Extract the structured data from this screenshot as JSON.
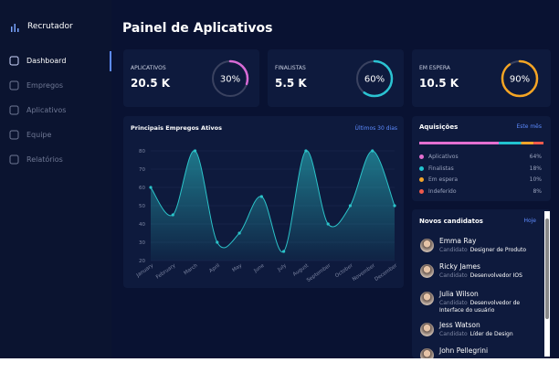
{
  "sidebar": {
    "brand": "Recrutador",
    "menu": [
      "Dashboard",
      "Empregos",
      "Aplicativos",
      "Equipe",
      "Relatórios"
    ]
  },
  "header": {
    "title": "Painel de Aplicativos"
  },
  "stats": [
    {
      "label": "APLICATIVOS",
      "value": "20.5 K",
      "percent": {
        "value": 30,
        "label": "30%"
      },
      "color": "#d86bd6"
    },
    {
      "label": "FINALISTAS",
      "value": "5.5 K",
      "percent": {
        "value": 60,
        "label": "60%"
      },
      "color": "#2bc3d2"
    },
    {
      "label": "EM ESPERA",
      "value": "10.5 K",
      "percent": {
        "value": 90,
        "label": "90%"
      },
      "color": "#f5a524"
    }
  ],
  "chart": {
    "type": "area",
    "title": "Principais Empregos Ativos",
    "period": "Últimos 30 dias",
    "categories": [
      "January",
      "February",
      "March",
      "April",
      "May",
      "June",
      "July",
      "August",
      "September",
      "October",
      "November",
      "December"
    ],
    "values": [
      60,
      45,
      80,
      30,
      35,
      55,
      25,
      80,
      40,
      50,
      80,
      50
    ],
    "ylim": [
      20,
      80
    ],
    "yticks": [
      20,
      30,
      40,
      50,
      60,
      70,
      80
    ],
    "color": "#2bc3c9",
    "grid": true
  },
  "acquisitions": {
    "title": "Aquisições",
    "period": "Este mês",
    "items": [
      {
        "name": "Aplicativos",
        "value": 64,
        "label": "64%",
        "color": "#e36fd0"
      },
      {
        "name": "Finalistas",
        "value": 18,
        "label": "18%",
        "color": "#22c3cf"
      },
      {
        "name": "Em espera",
        "value": 10,
        "label": "10%",
        "color": "#f2a42a"
      },
      {
        "name": "Indeferido",
        "value": 8,
        "label": "8%",
        "color": "#ef5a4c"
      }
    ]
  },
  "candidates": {
    "title": "Novos candidatos",
    "period": "Hoje",
    "items": [
      {
        "name": "Emma Ray",
        "prefix": "Candidato",
        "role": "Designer de Produto"
      },
      {
        "name": "Ricky James",
        "prefix": "Candidato",
        "role": "Desenvolvedor IOS"
      },
      {
        "name": "Julia Wilson",
        "prefix": "Candidato",
        "role": "Desenvolvedor de Interface do usuário"
      },
      {
        "name": "Jess Watson",
        "prefix": "Candidato",
        "role": "Líder de Design"
      },
      {
        "name": "John Pellegrini"
      }
    ]
  }
}
